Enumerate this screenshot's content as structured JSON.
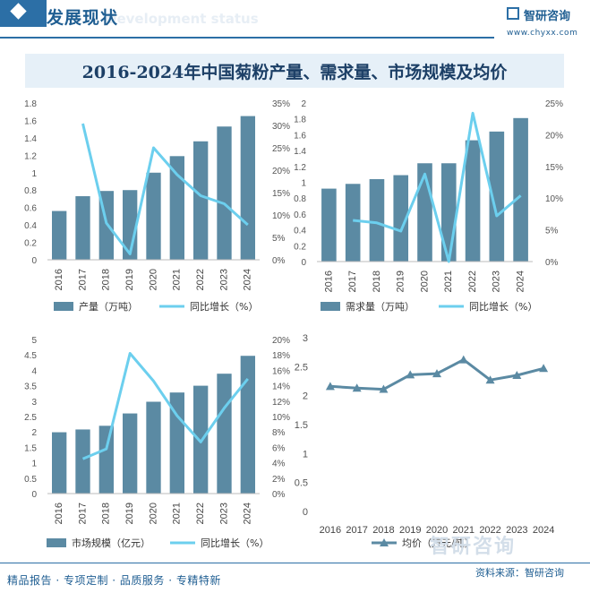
{
  "header": {
    "title": "发展现状",
    "ghost": "Development status",
    "brand": "智研咨询",
    "url": "www.chyxx.com"
  },
  "main_title": "2016-2024年中国菊粉产量、需求量、市场规模及均价",
  "footer": {
    "left": "精品报告 · 专项定制 · 品质服务 · 专精特新",
    "source": "资料来源：智研咨询"
  },
  "watermark": "智研咨询",
  "colors": {
    "bar": "#5b8aa3",
    "line": "#6ccfee",
    "price": "#5b8aa3",
    "accent": "#2c6fa6"
  },
  "chart_data": [
    {
      "type": "bar",
      "categories": [
        "2016",
        "2017",
        "2018",
        "2019",
        "2020",
        "2021",
        "2022",
        "2023",
        "2024"
      ],
      "series": [
        {
          "name": "产量（万吨）",
          "type": "bar",
          "axis": "left",
          "values": [
            0.56,
            0.73,
            0.79,
            0.8,
            1.0,
            1.19,
            1.36,
            1.53,
            1.65
          ]
        },
        {
          "name": "同比增长（%）",
          "type": "line",
          "axis": "right",
          "values": [
            null,
            30.4,
            8.2,
            1.3,
            25.0,
            19.0,
            14.3,
            12.5,
            7.8
          ]
        }
      ],
      "ylim_left": [
        0,
        1.8
      ],
      "yticks_left": [
        0,
        0.2,
        0.4,
        0.6,
        0.8,
        1,
        1.2,
        1.4,
        1.6,
        1.8
      ],
      "ylim_right": [
        0,
        35
      ],
      "yticks_right": [
        0,
        5,
        10,
        15,
        20,
        25,
        30,
        35
      ],
      "right_unit": "%"
    },
    {
      "type": "bar",
      "categories": [
        "2016",
        "2017",
        "2018",
        "2019",
        "2020",
        "2021",
        "2022",
        "2023",
        "2024"
      ],
      "series": [
        {
          "name": "需求量（万吨）",
          "type": "bar",
          "axis": "left",
          "values": [
            0.92,
            0.98,
            1.04,
            1.09,
            1.24,
            1.24,
            1.53,
            1.64,
            1.81
          ]
        },
        {
          "name": "同比增长（%）",
          "type": "line",
          "axis": "right",
          "values": [
            null,
            6.5,
            6.1,
            4.8,
            13.8,
            0.0,
            23.4,
            7.2,
            10.4
          ]
        }
      ],
      "ylim_left": [
        0,
        2
      ],
      "yticks_left": [
        0,
        0.2,
        0.4,
        0.6,
        0.8,
        1,
        1.2,
        1.4,
        1.6,
        1.8,
        2
      ],
      "ylim_right": [
        0,
        25
      ],
      "yticks_right": [
        0,
        5,
        10,
        15,
        20,
        25
      ],
      "right_unit": "%"
    },
    {
      "type": "bar",
      "categories": [
        "2016",
        "2017",
        "2018",
        "2019",
        "2020",
        "2021",
        "2022",
        "2023",
        "2024"
      ],
      "series": [
        {
          "name": "市场规模（亿元）",
          "type": "bar",
          "axis": "left",
          "values": [
            1.99,
            2.08,
            2.2,
            2.6,
            2.98,
            3.28,
            3.5,
            3.89,
            4.47
          ]
        },
        {
          "name": "同比增长（%）",
          "type": "line",
          "axis": "right",
          "values": [
            null,
            4.5,
            5.8,
            18.2,
            14.6,
            10.1,
            6.7,
            11.1,
            14.9
          ]
        }
      ],
      "ylim_left": [
        0,
        5
      ],
      "yticks_left": [
        0,
        0.5,
        1,
        1.5,
        2,
        2.5,
        3,
        3.5,
        4,
        4.5,
        5
      ],
      "ylim_right": [
        0,
        20
      ],
      "yticks_right": [
        0,
        2,
        4,
        6,
        8,
        10,
        12,
        14,
        16,
        18,
        20
      ],
      "right_unit": "%"
    },
    {
      "type": "line",
      "categories": [
        "2016",
        "2017",
        "2018",
        "2019",
        "2020",
        "2021",
        "2022",
        "2023",
        "2024"
      ],
      "series": [
        {
          "name": "均价（万元/吨）",
          "values": [
            2.16,
            2.13,
            2.11,
            2.36,
            2.38,
            2.62,
            2.27,
            2.35,
            2.47
          ]
        }
      ],
      "ylim": [
        0,
        3
      ],
      "yticks": [
        0,
        0.5,
        1,
        1.5,
        2,
        2.5,
        3
      ]
    }
  ]
}
